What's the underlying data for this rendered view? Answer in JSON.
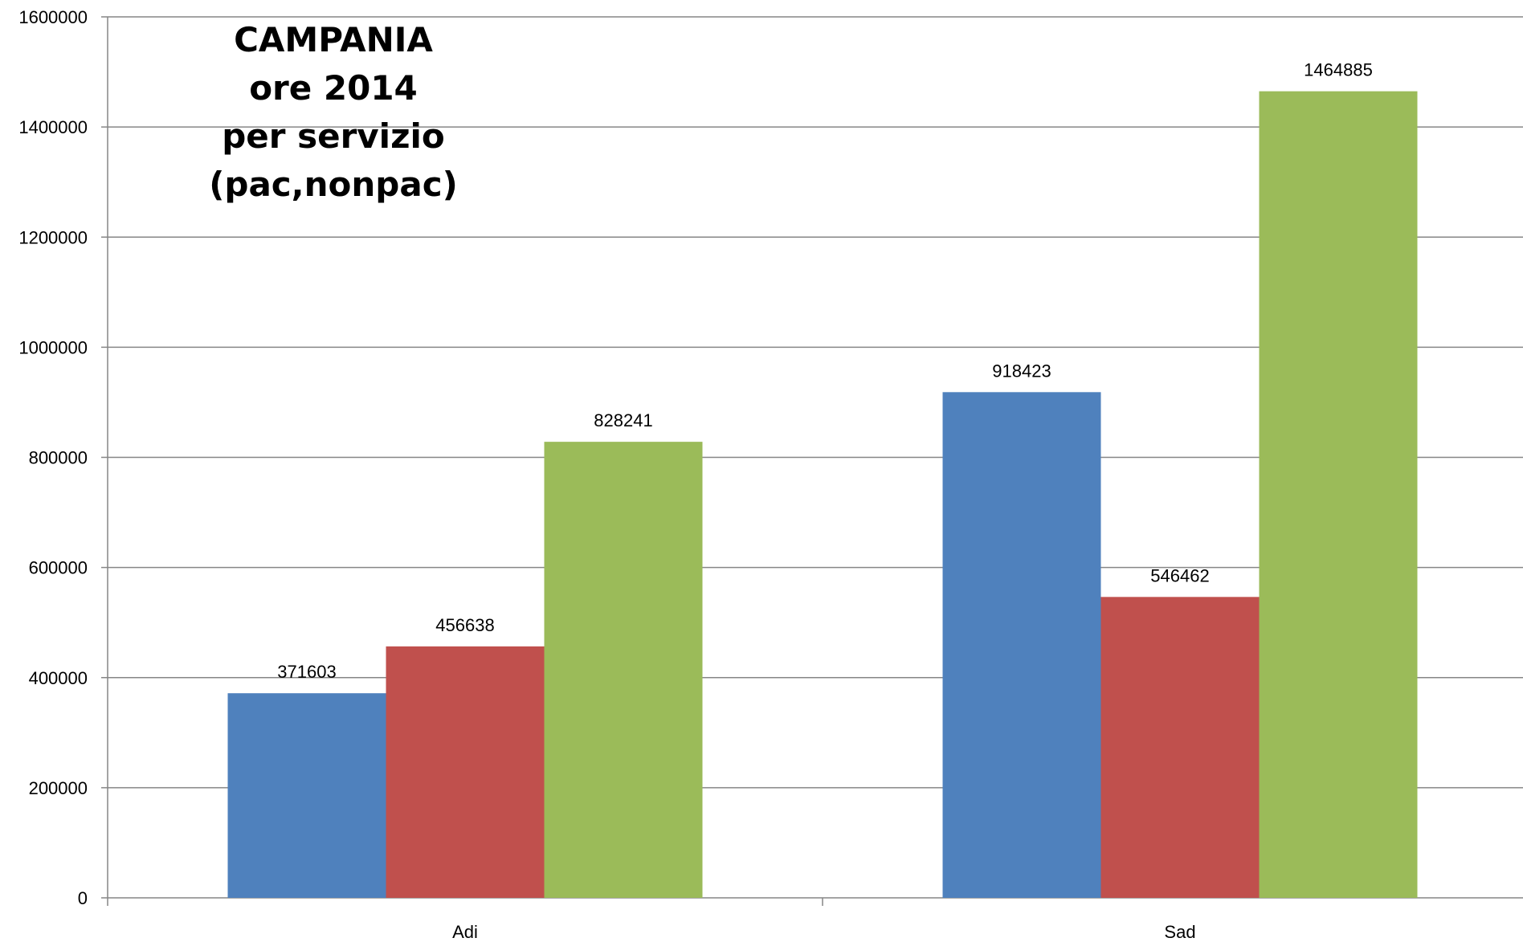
{
  "chart_data": {
    "type": "bar",
    "title_lines": [
      "CAMPANIA",
      "ore  2014",
      "per servizio (pac,nonpac)"
    ],
    "categories": [
      "Adi",
      "Sad"
    ],
    "series": [
      {
        "color": "#4F81BD",
        "values": [
          371603,
          918423
        ]
      },
      {
        "color": "#C0504D",
        "values": [
          456638,
          546462
        ]
      },
      {
        "color": "#9BBB59",
        "values": [
          828241,
          1464885
        ]
      }
    ],
    "ylim": [
      0,
      1600000
    ],
    "yticks": [
      0,
      200000,
      400000,
      600000,
      800000,
      1000000,
      1200000,
      1400000,
      1600000
    ],
    "grid": true,
    "legend": "none"
  }
}
